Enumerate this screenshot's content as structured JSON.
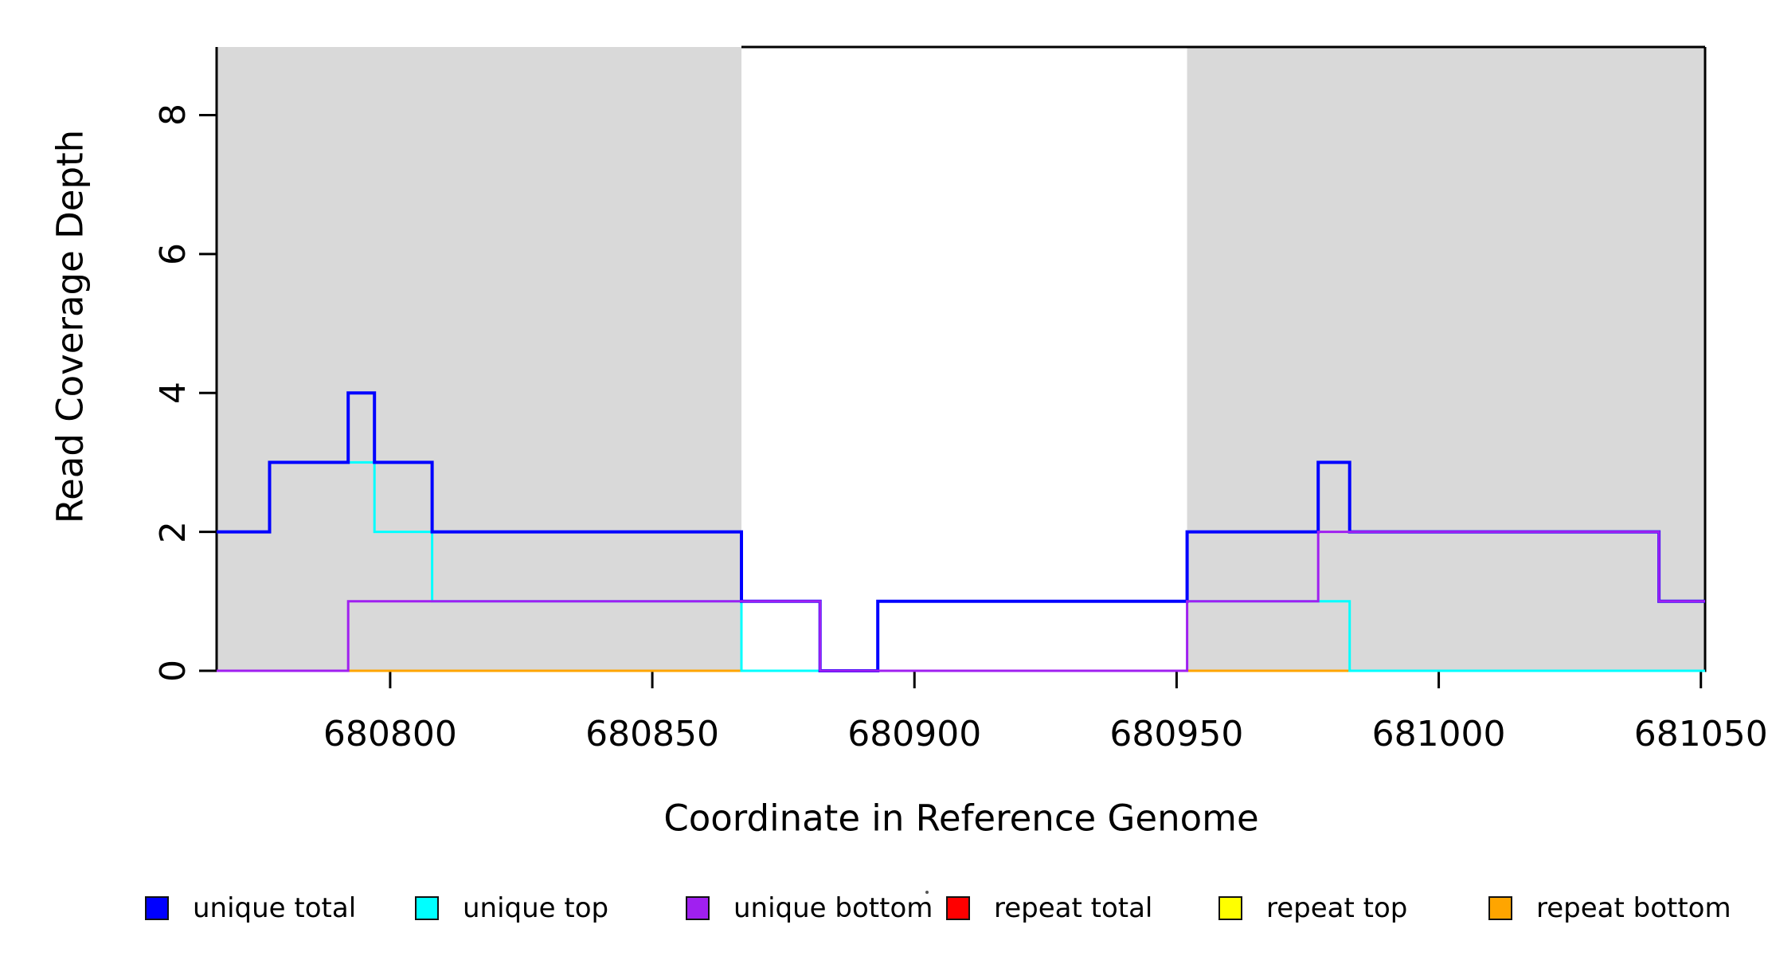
{
  "figure": {
    "background_color": "#FFFFFF",
    "axis_color": "#000000",
    "shading_color": "#D9D9D9"
  },
  "chart_data": {
    "type": "line",
    "subtype": "step-coverage-plot",
    "title": "",
    "xlabel": "Coordinate in Reference Genome",
    "ylabel": "Read Coverage Depth",
    "xlim": [
      680766.9,
      681050.8
    ],
    "ylim": [
      0,
      8.98
    ],
    "x_ticks": [
      {
        "value": 680800,
        "label": "680800"
      },
      {
        "value": 680850,
        "label": "680850"
      },
      {
        "value": 680900,
        "label": "680900"
      },
      {
        "value": 680950,
        "label": "680950"
      },
      {
        "value": 681000,
        "label": "681000"
      },
      {
        "value": 681050,
        "label": "681050"
      }
    ],
    "y_ticks": [
      {
        "value": 0,
        "label": "0"
      },
      {
        "value": 2,
        "label": "2"
      },
      {
        "value": 4,
        "label": "4"
      },
      {
        "value": 6,
        "label": "6"
      },
      {
        "value": 8,
        "label": "8"
      }
    ],
    "grid": false,
    "box": {
      "left": true,
      "right": true,
      "bottom": true,
      "top_line_from_x": 680867
    },
    "shaded_regions": [
      {
        "name": "repeat-region-left",
        "x_start": 680766.9,
        "x_end": 680867,
        "color": "#D9D9D9"
      },
      {
        "name": "repeat-region-right",
        "x_start": 680952,
        "x_end": 681050.8,
        "color": "#D9D9D9"
      }
    ],
    "series": [
      {
        "name": "unique total",
        "color": "#0000FF",
        "line_width": 4,
        "segments": [
          [
            [
              680766.9,
              2
            ],
            [
              680777,
              3
            ],
            [
              680792,
              4
            ],
            [
              680797,
              3
            ],
            [
              680808,
              2
            ],
            [
              680867,
              1
            ],
            [
              680882,
              0
            ],
            [
              680893,
              1
            ],
            [
              680952,
              2
            ],
            [
              680977,
              3
            ],
            [
              680983,
              2
            ],
            [
              681042,
              1
            ],
            [
              681050.8,
              1
            ]
          ]
        ]
      },
      {
        "name": "unique top",
        "color": "#00FFFF",
        "line_width": 3,
        "segments": [
          [
            [
              680766.9,
              2
            ],
            [
              680777,
              3
            ],
            [
              680797,
              2
            ],
            [
              680808,
              1
            ],
            [
              680867,
              0
            ],
            [
              680893,
              1
            ],
            [
              680983,
              0
            ],
            [
              681050.8,
              0
            ]
          ]
        ]
      },
      {
        "name": "unique bottom",
        "color": "#A020F0",
        "line_width": 3,
        "segments": [
          [
            [
              680766.9,
              0
            ],
            [
              680792,
              1
            ],
            [
              680882,
              0
            ],
            [
              680952,
              1
            ],
            [
              680977,
              2
            ],
            [
              681042,
              1
            ],
            [
              681050.8,
              1
            ]
          ]
        ]
      },
      {
        "name": "repeat total",
        "color": "#FF0000",
        "line_width": 3,
        "segments": [
          [
            [
              680766.9,
              0
            ],
            [
              680867,
              0
            ]
          ],
          [
            [
              680952,
              0
            ],
            [
              681050.8,
              0
            ]
          ]
        ]
      },
      {
        "name": "repeat top",
        "color": "#FFFF00",
        "line_width": 3,
        "segments": [
          [
            [
              680766.9,
              0
            ],
            [
              680867,
              0
            ]
          ],
          [
            [
              680952,
              0
            ],
            [
              681050.8,
              0
            ]
          ]
        ]
      },
      {
        "name": "repeat bottom",
        "color": "#FFA500",
        "line_width": 3,
        "segments": [
          [
            [
              680766.9,
              0
            ],
            [
              680867,
              0
            ]
          ],
          [
            [
              680952,
              0
            ],
            [
              681050.8,
              0
            ]
          ]
        ]
      }
    ],
    "draw_order": [
      "repeat total",
      "repeat top",
      "repeat bottom",
      "unique top",
      "unique total",
      "unique bottom"
    ],
    "legend": {
      "position": "bottom",
      "entries": [
        {
          "label": "unique total",
          "color": "#0000FF"
        },
        {
          "label": "unique top",
          "color": "#00FFFF"
        },
        {
          "label": "unique bottom",
          "color": "#A020F0"
        },
        {
          "label": "repeat total",
          "color": "#FF0000"
        },
        {
          "label": "repeat top",
          "color": "#FFFF00"
        },
        {
          "label": "repeat bottom",
          "color": "#FFA500"
        }
      ]
    },
    "stray_mark": {
      "x": 1164,
      "y": 1120
    }
  }
}
